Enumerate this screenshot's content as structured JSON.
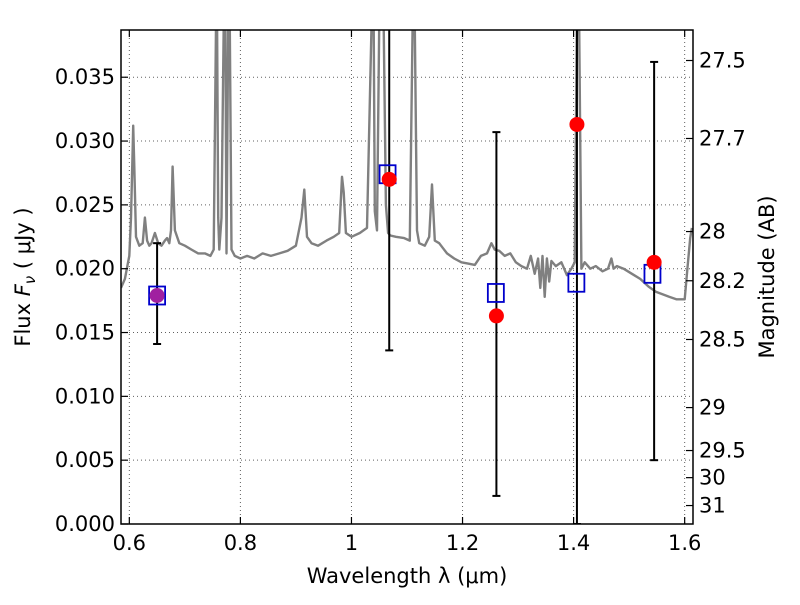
{
  "chart_data": {
    "type": "scatter",
    "xlabel": "Wavelength  λ (μm)",
    "ylabel": "Flux  F_ν  ( μJy )",
    "ylabel_parts": {
      "prefix": "Flux  ",
      "symbol": "F",
      "subscript": "ν",
      "unit": "  ( μJy )"
    },
    "y2label": "Magnitude (AB)",
    "xlim": [
      0.585,
      1.615
    ],
    "ylim": [
      0.0,
      0.0387
    ],
    "x_ticks": [
      {
        "value": 0.6,
        "label": "0.6"
      },
      {
        "value": 0.8,
        "label": "0.8"
      },
      {
        "value": 1.0,
        "label": "1"
      },
      {
        "value": 1.2,
        "label": "1.2"
      },
      {
        "value": 1.4,
        "label": "1.4"
      },
      {
        "value": 1.6,
        "label": "1.6"
      }
    ],
    "y_ticks": [
      {
        "value": 0.0,
        "label": "0.000"
      },
      {
        "value": 0.005,
        "label": "0.005"
      },
      {
        "value": 0.01,
        "label": "0.010"
      },
      {
        "value": 0.015,
        "label": "0.015"
      },
      {
        "value": 0.02,
        "label": "0.020"
      },
      {
        "value": 0.025,
        "label": "0.025"
      },
      {
        "value": 0.03,
        "label": "0.030"
      },
      {
        "value": 0.035,
        "label": "0.035"
      }
    ],
    "y2_ticks": [
      {
        "value": 27.5,
        "label": "27.5"
      },
      {
        "value": 27.7,
        "label": "27.7"
      },
      {
        "value": 28.0,
        "label": "28"
      },
      {
        "value": 28.2,
        "label": "28.2"
      },
      {
        "value": 28.5,
        "label": "28.5"
      },
      {
        "value": 29.0,
        "label": "29"
      },
      {
        "value": 29.5,
        "label": "29.5"
      },
      {
        "value": 30.0,
        "label": "30"
      },
      {
        "value": 31.0,
        "label": "31"
      }
    ],
    "grid": true,
    "grid_style": "dotted",
    "colors": {
      "spectrum": "#808080",
      "observed": "#ff0000",
      "model": "#0000cc",
      "overlap": "#a020a0",
      "errorbar": "#000000",
      "grid": "#606060"
    },
    "spectrum": {
      "x": [
        0.585,
        0.592,
        0.6,
        0.603,
        0.606,
        0.607,
        0.609,
        0.612,
        0.618,
        0.624,
        0.628,
        0.632,
        0.636,
        0.64,
        0.646,
        0.652,
        0.658,
        0.664,
        0.668,
        0.672,
        0.675,
        0.678,
        0.682,
        0.69,
        0.7,
        0.712,
        0.724,
        0.736,
        0.746,
        0.752,
        0.756,
        0.758,
        0.76,
        0.762,
        0.766,
        0.77,
        0.773,
        0.775,
        0.778,
        0.781,
        0.784,
        0.79,
        0.8,
        0.812,
        0.825,
        0.84,
        0.855,
        0.87,
        0.885,
        0.9,
        0.91,
        0.915,
        0.92,
        0.928,
        0.94,
        0.955,
        0.968,
        0.978,
        0.983,
        0.986,
        0.99,
        1.0,
        1.015,
        1.028,
        1.036,
        1.04,
        1.042,
        1.046,
        1.05,
        1.054,
        1.058,
        1.062,
        1.066,
        1.07,
        1.08,
        1.095,
        1.105,
        1.11,
        1.114,
        1.118,
        1.122,
        1.132,
        1.14,
        1.145,
        1.15,
        1.158,
        1.165,
        1.172,
        1.185,
        1.198,
        1.21,
        1.222,
        1.233,
        1.244,
        1.252,
        1.258,
        1.266,
        1.276,
        1.286,
        1.296,
        1.306,
        1.316,
        1.323,
        1.33,
        1.336,
        1.34,
        1.344,
        1.348,
        1.352,
        1.356,
        1.36,
        1.368,
        1.378,
        1.388,
        1.396,
        1.402,
        1.406,
        1.41,
        1.414,
        1.42,
        1.43,
        1.44,
        1.452,
        1.462,
        1.468,
        1.472,
        1.478,
        1.49,
        1.505,
        1.52,
        1.535,
        1.548,
        1.56,
        1.572,
        1.585,
        1.596,
        1.6,
        1.605,
        1.61,
        1.613
      ],
      "y": [
        0.0185,
        0.0192,
        0.021,
        0.024,
        0.0295,
        0.0312,
        0.028,
        0.0225,
        0.0218,
        0.022,
        0.024,
        0.0222,
        0.0218,
        0.022,
        0.0228,
        0.022,
        0.0218,
        0.0222,
        0.0224,
        0.022,
        0.023,
        0.028,
        0.023,
        0.022,
        0.0218,
        0.0215,
        0.0212,
        0.0212,
        0.021,
        0.0215,
        0.039,
        0.039,
        0.024,
        0.0215,
        0.024,
        0.039,
        0.039,
        0.0212,
        0.039,
        0.039,
        0.0215,
        0.021,
        0.0208,
        0.021,
        0.0208,
        0.0212,
        0.021,
        0.0212,
        0.0214,
        0.0218,
        0.024,
        0.0262,
        0.0225,
        0.022,
        0.0218,
        0.0222,
        0.0225,
        0.0228,
        0.0272,
        0.026,
        0.0228,
        0.0225,
        0.0228,
        0.0232,
        0.039,
        0.039,
        0.0245,
        0.023,
        0.039,
        0.039,
        0.039,
        0.025,
        0.0228,
        0.0226,
        0.0225,
        0.0224,
        0.0222,
        0.039,
        0.039,
        0.023,
        0.022,
        0.0218,
        0.0225,
        0.0266,
        0.0222,
        0.022,
        0.0216,
        0.0212,
        0.0208,
        0.0205,
        0.0204,
        0.0203,
        0.021,
        0.0212,
        0.022,
        0.0215,
        0.0214,
        0.021,
        0.0212,
        0.0205,
        0.0202,
        0.02,
        0.021,
        0.0196,
        0.0208,
        0.0185,
        0.021,
        0.0178,
        0.0208,
        0.019,
        0.0206,
        0.0202,
        0.0205,
        0.0195,
        0.02,
        0.0205,
        0.039,
        0.039,
        0.02,
        0.0205,
        0.02,
        0.0202,
        0.0198,
        0.02,
        0.0208,
        0.02,
        0.0202,
        0.02,
        0.0196,
        0.0192,
        0.0186,
        0.0182,
        0.018,
        0.0178,
        0.0176,
        0.0176,
        0.0176,
        0.02,
        0.0224,
        0.0232
      ]
    },
    "model_points": {
      "x": [
        0.65,
        1.065,
        1.26,
        1.405,
        1.542
      ],
      "y": [
        0.0179,
        0.0274,
        0.0181,
        0.0189,
        0.0196
      ]
    },
    "observed_points": {
      "x": [
        0.65,
        1.068,
        1.261,
        1.406,
        1.545
      ],
      "y": [
        0.0179,
        0.027,
        0.0163,
        0.0313,
        0.0205
      ],
      "yerr_low": [
        0.0038,
        0.0134,
        0.0141,
        0.0313,
        0.0155
      ],
      "yerr_high": [
        0.0041,
        0.0118,
        0.0144,
        0.01,
        0.0157
      ]
    }
  }
}
